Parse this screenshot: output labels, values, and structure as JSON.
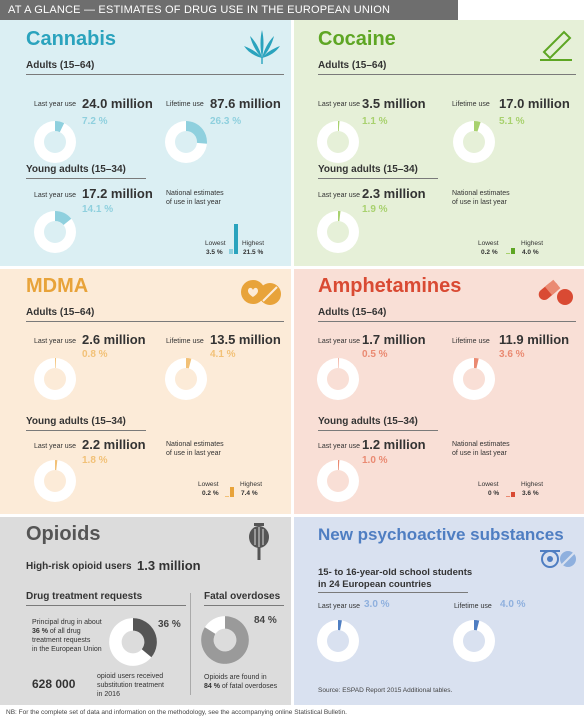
{
  "header": {
    "title": "AT A GLANCE — ESTIMATES OF DRUG USE IN THE EUROPEAN UNION"
  },
  "colors": {
    "cannabis": "#2aa3bd",
    "cannabis_light": "#8fd0de",
    "cocaine": "#5ea624",
    "cocaine_light": "#a8d16e",
    "mdma": "#e8a33a",
    "mdma_light": "#f2c177",
    "amphetamines": "#d94a33",
    "amphetamines_light": "#ea8a72",
    "opioids": "#555555",
    "nps": "#4f7ec2",
    "nps_light": "#8fb0de"
  },
  "labels": {
    "adults": "Adults (15–64)",
    "young_adults": "Young adults (15–34)",
    "last_year_use": "Last year use",
    "lifetime_use": "Lifetime use",
    "national_estimates_1": "National estimates",
    "national_estimates_2": "of use in last year",
    "lowest": "Lowest",
    "highest": "Highest"
  },
  "cannabis": {
    "title": "Cannabis",
    "adults_last_year": "24.0 million",
    "adults_last_year_pct": "7.2 %",
    "adults_last_year_frac": 0.072,
    "adults_lifetime": "87.6 million",
    "adults_lifetime_pct": "26.3 %",
    "adults_lifetime_frac": 0.263,
    "young_last_year": "17.2 million",
    "young_last_year_pct": "14.1 %",
    "young_last_year_frac": 0.141,
    "lowest": "3.5 %",
    "highest": "21.5 %",
    "lowest_frac": 0.035,
    "highest_frac": 0.215
  },
  "cocaine": {
    "title": "Cocaine",
    "adults_last_year": "3.5 million",
    "adults_last_year_pct": "1.1 %",
    "adults_last_year_frac": 0.011,
    "adults_lifetime": "17.0 million",
    "adults_lifetime_pct": "5.1 %",
    "adults_lifetime_frac": 0.051,
    "young_last_year": "2.3 million",
    "young_last_year_pct": "1.9 %",
    "young_last_year_frac": 0.019,
    "lowest": "0.2 %",
    "highest": "4.0 %",
    "lowest_frac": 0.002,
    "highest_frac": 0.04
  },
  "mdma": {
    "title": "MDMA",
    "adults_last_year": "2.6 million",
    "adults_last_year_pct": "0.8 %",
    "adults_last_year_frac": 0.008,
    "adults_lifetime": "13.5 million",
    "adults_lifetime_pct": "4.1 %",
    "adults_lifetime_frac": 0.041,
    "young_last_year": "2.2 million",
    "young_last_year_pct": "1.8 %",
    "young_last_year_frac": 0.018,
    "lowest": "0.2 %",
    "highest": "7.4 %",
    "lowest_frac": 0.002,
    "highest_frac": 0.074
  },
  "amphetamines": {
    "title": "Amphetamines",
    "adults_last_year": "1.7 million",
    "adults_last_year_pct": "0.5 %",
    "adults_last_year_frac": 0.005,
    "adults_lifetime": "11.9 million",
    "adults_lifetime_pct": "3.6 %",
    "adults_lifetime_frac": 0.036,
    "young_last_year": "1.2 million",
    "young_last_year_pct": "1.0 %",
    "young_last_year_frac": 0.01,
    "lowest": "0 %",
    "highest": "3.6 %",
    "lowest_frac": 0.0,
    "highest_frac": 0.036
  },
  "opioids": {
    "title": "Opioids",
    "high_risk_label": "High-risk opioid users",
    "high_risk_value": "1.3 million",
    "treatment_heading": "Drug treatment requests",
    "treatment_text_1": "Principal drug in about",
    "treatment_text_2_bold": "36 %",
    "treatment_text_2_rest": " of all drug",
    "treatment_text_3": "treatment requests",
    "treatment_text_4": "in the European Union",
    "treatment_pct": "36 %",
    "treatment_frac": 0.36,
    "overdose_heading": "Fatal overdoses",
    "overdose_pct": "84 %",
    "overdose_frac": 0.84,
    "overdose_text_1": "Opioids are found in",
    "overdose_text_2_bold": "84 %",
    "overdose_text_2_rest": " of fatal overdoses",
    "substitution_value": "628 000",
    "substitution_text_1": "opioid users received",
    "substitution_text_2": "substitution treatment",
    "substitution_text_3": "in 2016"
  },
  "nps": {
    "title": "New psychoactive substances",
    "subtitle_1": "15- to 16-year-old school students",
    "subtitle_2": "in 24 European countries",
    "last_year_pct": "3.0 %",
    "last_year_frac": 0.03,
    "lifetime_pct": "4.0 %",
    "lifetime_frac": 0.04,
    "source": "Source: ESPAD Report 2015 Additional tables."
  },
  "footer": {
    "note": "NB: For the complete set of data and information on the methodology, see the accompanying online Statistical Bulletin."
  }
}
